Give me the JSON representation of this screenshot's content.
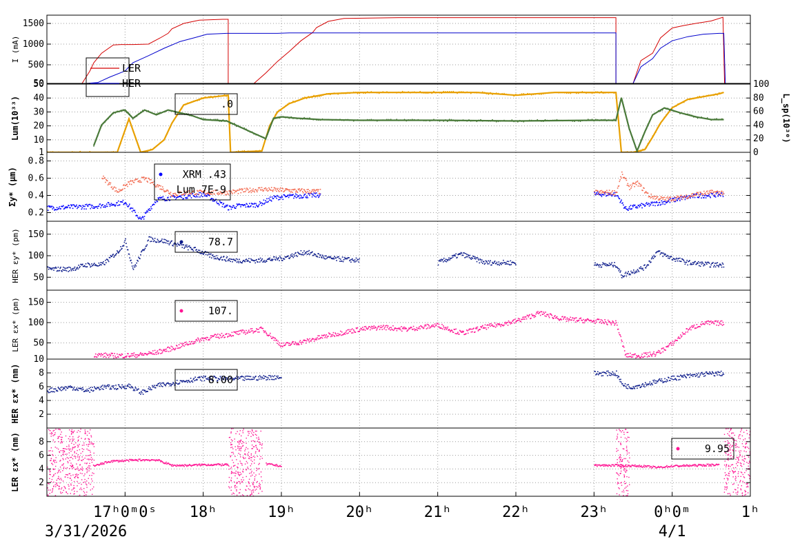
{
  "chart_data": [
    {
      "id": "p1",
      "type": "line",
      "ylabel": "I (mA)",
      "ylim": [
        50,
        1700
      ],
      "yticks": [
        {
          "v": 50,
          "t": "50"
        },
        {
          "v": 500,
          "t": "500"
        },
        {
          "v": 1000,
          "t": "1000"
        },
        {
          "v": 1500,
          "t": "1500"
        }
      ],
      "legend": [
        {
          "label": "LER",
          "color": "#d40000"
        },
        {
          "label": "HER",
          "color": "#0000cc"
        }
      ],
      "series": [
        {
          "name": "LER",
          "color": "#d40000",
          "x": [
            16.0,
            16.2,
            16.35,
            16.45,
            16.55,
            16.6,
            16.7,
            16.85,
            16.95,
            17.1,
            17.3,
            17.45,
            17.55,
            17.6,
            17.75,
            17.95,
            18.25,
            18.32,
            18.32,
            18.35,
            18.6,
            18.65,
            18.8,
            18.95,
            19.1,
            19.25,
            19.4,
            19.45,
            19.6,
            19.8,
            20.5,
            21.0,
            21.5,
            22.0,
            22.5,
            23.0,
            23.28,
            23.28,
            23.35,
            23.5,
            23.6,
            23.75,
            23.85,
            24.0,
            24.15,
            24.3,
            24.5,
            24.65,
            24.67
          ],
          "y": [
            50,
            50,
            50,
            50,
            350,
            550,
            780,
            980,
            990,
            990,
            1000,
            1150,
            1260,
            1370,
            1500,
            1580,
            1600,
            1600,
            50,
            50,
            50,
            50,
            300,
            580,
            820,
            1080,
            1280,
            1400,
            1550,
            1620,
            1640,
            1640,
            1640,
            1640,
            1640,
            1640,
            1640,
            50,
            50,
            50,
            600,
            780,
            1150,
            1390,
            1450,
            1500,
            1560,
            1650,
            50
          ]
        },
        {
          "name": "HER",
          "color": "#0000cc",
          "x": [
            16.0,
            16.5,
            16.65,
            16.8,
            17.0,
            17.1,
            17.3,
            17.5,
            17.7,
            17.9,
            18.05,
            18.3,
            18.5,
            18.75,
            18.85,
            18.95,
            19.1,
            19.3,
            19.5,
            20.0,
            21.0,
            22.0,
            23.0,
            23.28,
            23.28,
            23.35,
            23.5,
            23.6,
            23.75,
            23.85,
            24.0,
            24.2,
            24.4,
            24.6,
            24.66,
            24.68
          ],
          "y": [
            50,
            50,
            70,
            200,
            350,
            550,
            720,
            900,
            1060,
            1160,
            1240,
            1260,
            1260,
            1260,
            1260,
            1260,
            1270,
            1270,
            1270,
            1270,
            1270,
            1270,
            1270,
            1270,
            50,
            50,
            50,
            450,
            650,
            900,
            1080,
            1180,
            1240,
            1260,
            1260,
            50
          ]
        }
      ]
    },
    {
      "id": "p2",
      "type": "line",
      "ylabel": "Lum(10³³)",
      "ylim": [
        1,
        50
      ],
      "y2label": "L_sp(10³⁰)",
      "y2lim": [
        0,
        100
      ],
      "yticks": [
        {
          "v": 1,
          "t": "1"
        },
        {
          "v": 10,
          "t": "10"
        },
        {
          "v": 20,
          "t": "20"
        },
        {
          "v": 30,
          "t": "30"
        },
        {
          "v": 40,
          "t": "40"
        },
        {
          "v": 50,
          "t": "50"
        }
      ],
      "y2ticks": [
        {
          "v": 0,
          "t": "0"
        },
        {
          "v": 20,
          "t": "20"
        },
        {
          "v": 40,
          "t": "40"
        },
        {
          "v": 60,
          "t": "60"
        },
        {
          "v": 80,
          "t": "80"
        },
        {
          "v": 100,
          "t": "100"
        }
      ],
      "legend": [
        {
          "label": ".0",
          "color": "#000000"
        }
      ],
      "series": [
        {
          "name": "Lum",
          "color": "#e8a000",
          "x": [
            16.0,
            16.9,
            17.05,
            17.2,
            17.35,
            17.5,
            17.6,
            17.75,
            18.0,
            18.32,
            18.35,
            18.75,
            18.85,
            18.95,
            19.1,
            19.3,
            19.6,
            20.0,
            21.0,
            21.5,
            22.0,
            22.5,
            23.0,
            23.28,
            23.35,
            23.5,
            23.65,
            23.75,
            23.85,
            24.0,
            24.2,
            24.4,
            24.6,
            24.66
          ],
          "y": [
            1,
            1,
            25,
            1,
            3,
            10,
            22,
            35,
            40,
            42,
            1,
            2,
            20,
            30,
            36,
            40,
            43,
            44,
            44,
            44,
            42,
            44,
            44,
            44,
            1,
            1,
            3,
            12,
            22,
            33,
            39,
            41,
            43,
            44
          ]
        },
        {
          "name": "L_sp",
          "color": "#4a7a3a",
          "axis": "y2",
          "x": [
            16.6,
            16.7,
            16.85,
            17.0,
            17.1,
            17.25,
            17.4,
            17.55,
            17.7,
            17.85,
            18.0,
            18.3,
            18.8,
            18.9,
            19.0,
            19.2,
            19.5,
            20.0,
            21.0,
            22.0,
            23.0,
            23.28,
            23.35,
            23.45,
            23.55,
            23.65,
            23.75,
            23.9,
            24.1,
            24.3,
            24.5,
            24.66
          ],
          "y": [
            10,
            40,
            58,
            62,
            50,
            62,
            55,
            62,
            58,
            54,
            48,
            46,
            20,
            50,
            52,
            50,
            48,
            47,
            47,
            46,
            47,
            47,
            80,
            35,
            2,
            30,
            55,
            65,
            58,
            52,
            48,
            48
          ]
        }
      ]
    },
    {
      "id": "p3",
      "type": "scatter",
      "ylabel": "Σy* (μm)",
      "ylim": [
        0.1,
        0.9
      ],
      "yticks": [
        {
          "v": 0.2,
          "t": "0.2"
        },
        {
          "v": 0.4,
          "t": "0.4"
        },
        {
          "v": 0.6,
          "t": "0.6"
        },
        {
          "v": 0.8,
          "t": "0.8"
        }
      ],
      "legend": [
        {
          "label": "XRM  .43",
          "color": "#0000ff",
          "marker": true
        },
        {
          "label": "Lum 7E-9",
          "color": "#000000"
        }
      ],
      "series": [
        {
          "name": "XRM",
          "color": "#0000ff",
          "x": [
            16.0,
            16.3,
            16.6,
            16.8,
            17.0,
            17.2,
            17.4,
            17.6,
            17.8,
            18.0,
            18.32,
            18.4,
            18.7,
            18.9,
            19.2,
            19.5,
            20.0,
            20.5,
            21.0,
            21.5,
            22.0,
            22.5,
            23.0,
            23.28,
            23.4,
            23.5,
            23.7,
            23.9,
            24.1,
            24.3,
            24.5,
            24.66
          ],
          "y": [
            0.26,
            0.27,
            0.28,
            0.3,
            0.33,
            0.12,
            0.36,
            0.38,
            0.4,
            0.42,
            0.26,
            0.28,
            0.3,
            0.38,
            0.4,
            0.41,
            0.42,
            0.42,
            0.42,
            0.42,
            0.44,
            0.42,
            0.42,
            0.42,
            0.25,
            0.27,
            0.3,
            0.33,
            0.37,
            0.4,
            0.41,
            0.42
          ]
        },
        {
          "name": "Lum",
          "color": "#f26a50",
          "x": [
            16.7,
            16.9,
            17.05,
            17.25,
            17.45,
            17.6,
            17.8,
            18.0,
            18.3,
            18.75,
            18.9,
            19.2,
            19.5,
            20.0,
            21.0,
            21.5,
            22.0,
            22.5,
            23.0,
            23.28,
            23.35,
            23.45,
            23.55,
            23.7,
            23.9,
            24.1,
            24.3,
            24.5,
            24.66
          ],
          "y": [
            0.62,
            0.45,
            0.55,
            0.6,
            0.5,
            0.42,
            0.44,
            0.44,
            0.44,
            0.48,
            0.47,
            0.46,
            0.45,
            0.45,
            0.45,
            0.45,
            0.47,
            0.44,
            0.44,
            0.44,
            0.65,
            0.5,
            0.55,
            0.4,
            0.36,
            0.38,
            0.42,
            0.44,
            0.44
          ]
        }
      ]
    },
    {
      "id": "p4",
      "type": "scatter",
      "ylabel": "HER εy* (pm)",
      "ylim": [
        20,
        180
      ],
      "yticks": [
        {
          "v": 50,
          "t": "50"
        },
        {
          "v": 100,
          "t": "100"
        },
        {
          "v": 150,
          "t": "150"
        }
      ],
      "legend": [
        {
          "label": "78.7",
          "color": "#0a1a8a",
          "marker": true
        }
      ],
      "series": [
        {
          "name": "HER εy*",
          "color": "#0a1a8a",
          "x": [
            16.0,
            16.3,
            16.5,
            16.7,
            16.9,
            17.0,
            17.1,
            17.3,
            17.5,
            17.7,
            17.9,
            18.1,
            18.4,
            18.7,
            19.0,
            19.3,
            19.6,
            20.0,
            20.5,
            21.0,
            21.3,
            21.6,
            22.0,
            22.5,
            23.0,
            23.28,
            23.35,
            23.5,
            23.65,
            23.8,
            24.0,
            24.2,
            24.5,
            24.66
          ],
          "y": [
            70,
            70,
            80,
            80,
            110,
            135,
            70,
            140,
            135,
            125,
            115,
            100,
            90,
            90,
            95,
            110,
            95,
            90,
            95,
            85,
            105,
            85,
            85,
            85,
            80,
            80,
            55,
            65,
            75,
            110,
            95,
            85,
            80,
            80
          ]
        }
      ]
    },
    {
      "id": "p5",
      "type": "scatter",
      "ylabel": "LER εx* (pm)",
      "ylim": [
        10,
        180
      ],
      "yticks": [
        {
          "v": 10,
          "t": "10"
        },
        {
          "v": 50,
          "t": "50"
        },
        {
          "v": 100,
          "t": "100"
        },
        {
          "v": 150,
          "t": "150"
        }
      ],
      "legend": [
        {
          "label": "107.",
          "color": "#ff1493",
          "marker": true
        }
      ],
      "series": [
        {
          "name": "LER εx*",
          "color": "#ff1493",
          "x": [
            16.6,
            16.8,
            17.0,
            17.2,
            17.4,
            17.6,
            17.8,
            18.0,
            18.32,
            18.75,
            18.85,
            19.0,
            19.3,
            19.6,
            20.0,
            20.3,
            20.6,
            21.0,
            21.3,
            21.6,
            22.0,
            22.3,
            22.6,
            23.0,
            23.28,
            23.4,
            23.6,
            23.8,
            24.0,
            24.2,
            24.4,
            24.66
          ],
          "y": [
            22,
            20,
            20,
            22,
            28,
            38,
            50,
            62,
            72,
            85,
            70,
            45,
            55,
            70,
            85,
            90,
            85,
            95,
            75,
            90,
            105,
            125,
            110,
            105,
            100,
            20,
            20,
            25,
            50,
            85,
            100,
            100
          ]
        }
      ]
    },
    {
      "id": "p6",
      "type": "scatter",
      "ylabel": "HER εx* (nm)",
      "ylim": [
        0,
        10
      ],
      "yticks": [
        {
          "v": 2,
          "t": "2"
        },
        {
          "v": 4,
          "t": "4"
        },
        {
          "v": 6,
          "t": "6"
        },
        {
          "v": 8,
          "t": "8"
        }
      ],
      "legend": [
        {
          "label": "8.00",
          "color": "#000000"
        }
      ],
      "series": [
        {
          "name": "HER εx*",
          "color": "#0a1a8a",
          "x": [
            16.0,
            16.3,
            16.5,
            16.7,
            16.9,
            17.05,
            17.2,
            17.4,
            17.6,
            17.8,
            18.0,
            18.3,
            18.6,
            19.0,
            19.5,
            20.0,
            20.5,
            21.0,
            21.5,
            22.0,
            22.5,
            23.0,
            23.28,
            23.35,
            23.45,
            23.6,
            23.8,
            24.0,
            24.2,
            24.4,
            24.66
          ],
          "y": [
            5.5,
            6.0,
            5.5,
            6.0,
            6.0,
            6.2,
            5.2,
            6.2,
            6.6,
            7.0,
            7.3,
            7.2,
            7.3,
            7.5,
            7.6,
            7.7,
            7.8,
            7.8,
            7.9,
            7.9,
            8.0,
            8.0,
            8.0,
            6.5,
            6.0,
            6.3,
            6.8,
            7.3,
            7.6,
            7.9,
            8.0
          ]
        }
      ]
    },
    {
      "id": "p7",
      "type": "scatter",
      "ylabel": "LER εx* (nm)",
      "ylim": [
        0,
        10
      ],
      "yticks": [
        {
          "v": 2,
          "t": "2"
        },
        {
          "v": 4,
          "t": "4"
        },
        {
          "v": 6,
          "t": "6"
        },
        {
          "v": 8,
          "t": "8"
        }
      ],
      "legend": [
        {
          "label": "9.95",
          "color": "#ff1493",
          "marker": true
        }
      ],
      "series": [
        {
          "name": "LER εx*",
          "color": "#ff1493",
          "x": [
            16.6,
            16.8,
            17.0,
            17.2,
            17.4,
            17.6,
            17.8,
            18.0,
            18.32,
            18.8,
            19.0,
            19.5,
            20.0,
            21.0,
            22.0,
            23.0,
            23.28,
            23.6,
            23.8,
            24.0,
            24.3,
            24.6
          ],
          "y": [
            4.5,
            5.2,
            5.3,
            5.4,
            5.4,
            4.6,
            4.6,
            4.7,
            4.7,
            4.8,
            4.5,
            4.6,
            4.6,
            4.6,
            4.6,
            4.6,
            4.6,
            4.5,
            4.3,
            4.5,
            4.6,
            4.7
          ]
        }
      ]
    }
  ],
  "xaxis": {
    "labels": [
      {
        "v": 17,
        "t": "17ʰ0ᵐ0ˢ"
      },
      {
        "v": 18,
        "t": "18ʰ"
      },
      {
        "v": 19,
        "t": "19ʰ"
      },
      {
        "v": 20,
        "t": "20ʰ"
      },
      {
        "v": 21,
        "t": "21ʰ"
      },
      {
        "v": 22,
        "t": "22ʰ"
      },
      {
        "v": 23,
        "t": "23ʰ"
      },
      {
        "v": 24,
        "t": "0ʰ0ᵐ"
      },
      {
        "v": 25,
        "t": "1ʰ"
      }
    ],
    "dates": [
      {
        "v": 16.5,
        "t": "3/31/2026"
      },
      {
        "v": 24,
        "t": "4/1"
      }
    ],
    "range": [
      16.0,
      25.0
    ]
  }
}
